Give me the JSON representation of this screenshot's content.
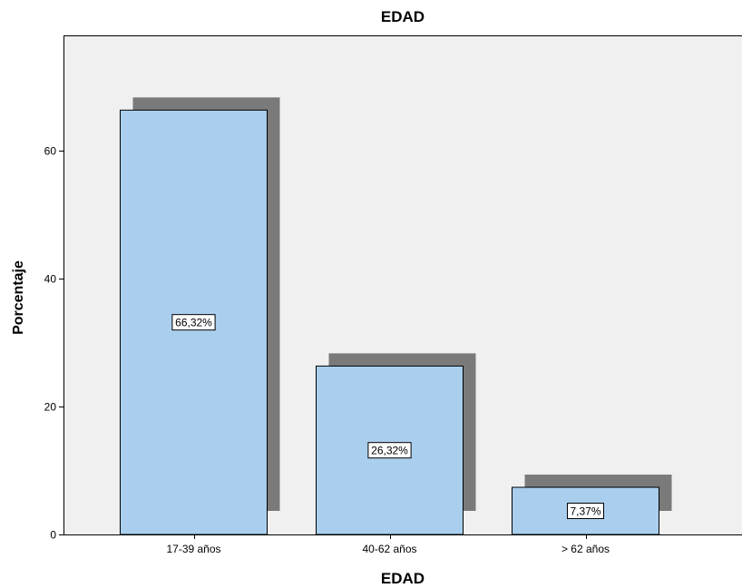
{
  "chart_data": {
    "type": "bar",
    "title": "EDAD",
    "xlabel": "EDAD",
    "ylabel": "Porcentaje",
    "categories": [
      "17-39 años",
      "40-62 años",
      "> 62 años"
    ],
    "values": [
      66.32,
      26.32,
      7.37
    ],
    "data_labels": [
      "66,32%",
      "26,32%",
      "7,37%"
    ],
    "ylim": [
      0,
      78
    ],
    "yticks": [
      0,
      20,
      40,
      60
    ],
    "grid": false,
    "legend": "none",
    "style": "3d-shadow"
  },
  "colors": {
    "background": "#ffffff",
    "plot_area": "#f0f0f0",
    "bar_fill": "#aacfee",
    "bar_edge": "#000000",
    "bar_shadow": "#7a7a7a"
  }
}
